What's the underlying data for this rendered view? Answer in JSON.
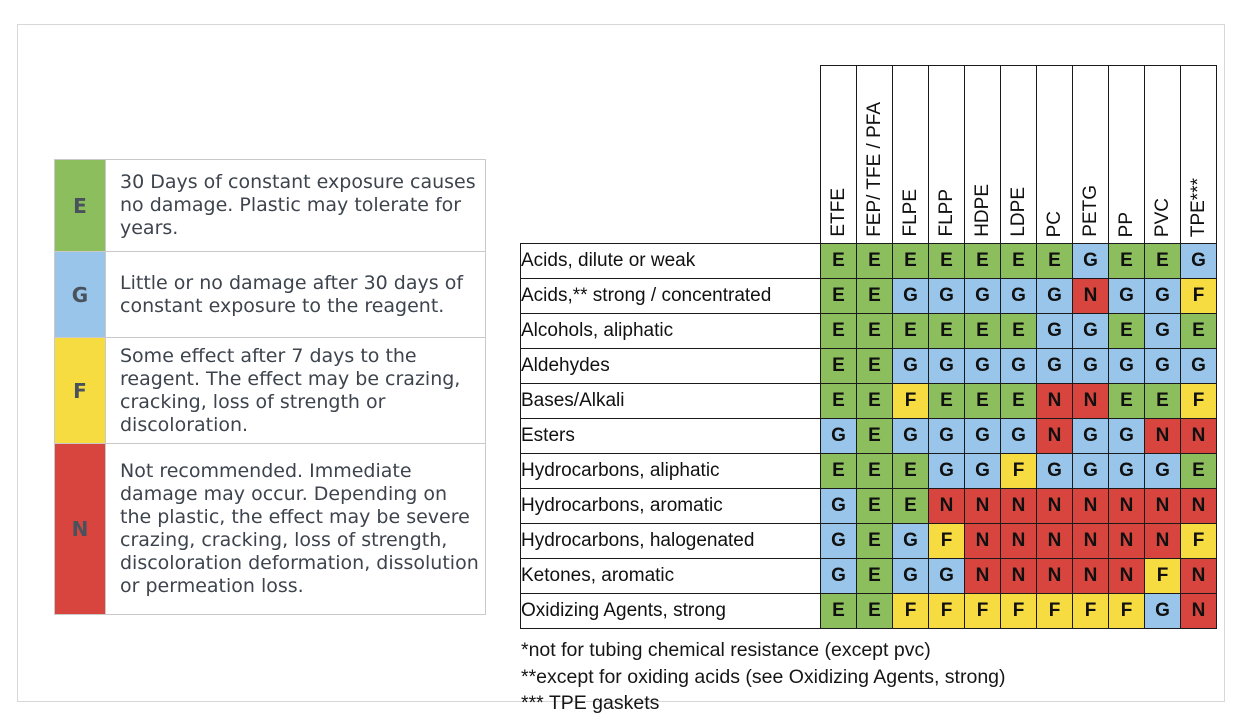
{
  "legend": {
    "items": [
      {
        "code": "E",
        "color": "#8dbe5d",
        "description": "30 Days of constant exposure causes no damage. Plastic may tolerate for years."
      },
      {
        "code": "G",
        "color": "#98c5e9",
        "description": "Little or no damage after 30 days of constant exposure to the reagent."
      },
      {
        "code": "F",
        "color": "#f6dc41",
        "description": "Some effect after 7 days to the reagent. The effect may be crazing, cracking, loss of strength or discoloration."
      },
      {
        "code": "N",
        "color": "#d8453e",
        "description": "Not recommended. Immediate damage may occur. Depending on the plastic, the effect may be severe crazing, cracking, loss of strength, discoloration deformation, dissolution or permeation loss."
      }
    ]
  },
  "rating_colors": {
    "E": "#8dbe5d",
    "G": "#98c5e9",
    "F": "#f6dc41",
    "N": "#d8453e"
  },
  "chart_data": {
    "type": "table",
    "title": "Plastic chemical resistance ratings by reagent class",
    "legend_position": "left",
    "columns": [
      "ETFE",
      "FEP/ TFE / PFA",
      "FLPE",
      "FLPP",
      "HDPE",
      "LDPE",
      "PC",
      "PETG",
      "PP",
      "PVC",
      "TPE***"
    ],
    "rows": [
      {
        "label": "Acids, dilute or weak",
        "ratings": [
          "E",
          "E",
          "E",
          "E",
          "E",
          "E",
          "E",
          "G",
          "E",
          "E",
          "G"
        ]
      },
      {
        "label": "Acids,** strong / concentrated",
        "ratings": [
          "E",
          "E",
          "G",
          "G",
          "G",
          "G",
          "G",
          "N",
          "G",
          "G",
          "F"
        ]
      },
      {
        "label": "Alcohols, aliphatic",
        "ratings": [
          "E",
          "E",
          "E",
          "E",
          "E",
          "E",
          "G",
          "G",
          "E",
          "G",
          "E"
        ]
      },
      {
        "label": "Aldehydes",
        "ratings": [
          "E",
          "E",
          "G",
          "G",
          "G",
          "G",
          "G",
          "G",
          "G",
          "G",
          "G"
        ]
      },
      {
        "label": "Bases/Alkali",
        "ratings": [
          "E",
          "E",
          "F",
          "E",
          "E",
          "E",
          "N",
          "N",
          "E",
          "E",
          "F"
        ]
      },
      {
        "label": "Esters",
        "ratings": [
          "G",
          "E",
          "G",
          "G",
          "G",
          "G",
          "N",
          "G",
          "G",
          "N",
          "N"
        ]
      },
      {
        "label": "Hydrocarbons, aliphatic",
        "ratings": [
          "E",
          "E",
          "E",
          "G",
          "G",
          "F",
          "G",
          "G",
          "G",
          "G",
          "E"
        ]
      },
      {
        "label": "Hydrocarbons, aromatic",
        "ratings": [
          "G",
          "E",
          "E",
          "N",
          "N",
          "N",
          "N",
          "N",
          "N",
          "N",
          "N"
        ]
      },
      {
        "label": "Hydrocarbons, halogenated",
        "ratings": [
          "G",
          "E",
          "G",
          "F",
          "N",
          "N",
          "N",
          "N",
          "N",
          "N",
          "F"
        ]
      },
      {
        "label": "Ketones, aromatic",
        "ratings": [
          "G",
          "E",
          "G",
          "G",
          "N",
          "N",
          "N",
          "N",
          "N",
          "F",
          "N"
        ]
      },
      {
        "label": "Oxidizing Agents, strong",
        "ratings": [
          "E",
          "E",
          "F",
          "F",
          "F",
          "F",
          "F",
          "F",
          "F",
          "G",
          "N"
        ]
      }
    ]
  },
  "footnotes": [
    "*not for tubing chemical resistance (except pvc)",
    "**except for oxiding acids (see Oxidizing Agents, strong)",
    "*** TPE gaskets"
  ]
}
